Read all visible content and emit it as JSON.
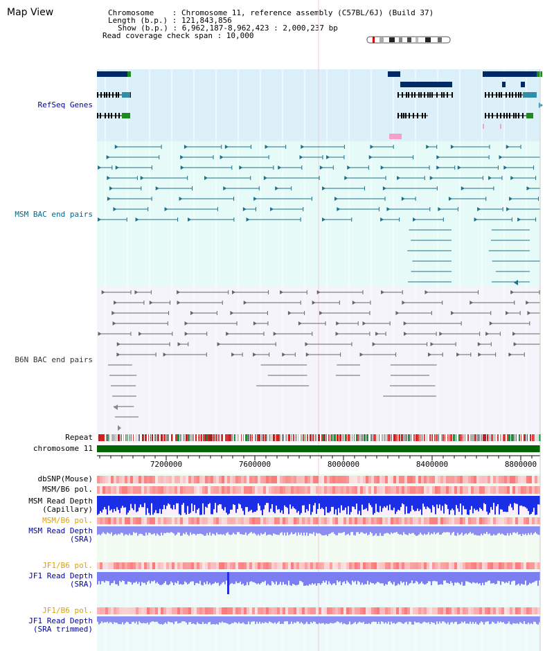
{
  "title": "Map View",
  "info": {
    "line1": "Chromosome    : Chromosome 11, reference assembly (C57BL/6J) (Build 37)",
    "line2": "Length (b.p.) : 121,843,856",
    "line3": "Show (b.p.) : 6,962,187-8,962,423 : 2,000,237 bp",
    "line4": "Read coverage check span : 10,000"
  },
  "tracks": {
    "refseq": "RefSeq Genes",
    "msm_bac": "MSM BAC end pairs",
    "b6n_bac": "B6N BAC end pairs",
    "repeat": "Repeat",
    "chromosome": "chromosome 11",
    "dbsnp": "dbSNP(Mouse)",
    "msm_b6_pol": "MSM/B6 pol.",
    "msm_depth_cap_1": "MSM Read Depth",
    "msm_depth_cap_2": "(Capillary)",
    "msm_b6_pol2": "MSM/B6 pol.",
    "msm_depth_sra_1": "MSM Read Depth",
    "msm_depth_sra_2": "(SRA)",
    "jf1_b6_pol": "JF1/B6 pol.",
    "jf1_depth_sra_1": "JF1 Read Depth",
    "jf1_depth_sra_2": "(SRA)",
    "jf1_b6_pol2": "JF1/B6 pol.",
    "jf1_depth_trim_1": "JF1 Read Depth",
    "jf1_depth_trim_2": "(SRA trimmed)"
  },
  "axis": {
    "ticks": [
      "7200000",
      "7600000",
      "8000000",
      "8400000",
      "8800000"
    ]
  },
  "colors": {
    "refseq_bg": "#dcf0fa",
    "msm_bg": "#e6faf8",
    "b6n_bg": "#f4f4fa",
    "lower_bg": "#eefaee",
    "gene_dark": "#002a66",
    "gene_teal": "#2f8fa8",
    "gene_green": "#1f8a1f",
    "msm_line": "#1d6f8a",
    "b6n_line": "#666666",
    "chrom_green": "#006600",
    "label_blue": "#000099",
    "label_teal": "#00668a",
    "label_orange": "#e0a000"
  }
}
